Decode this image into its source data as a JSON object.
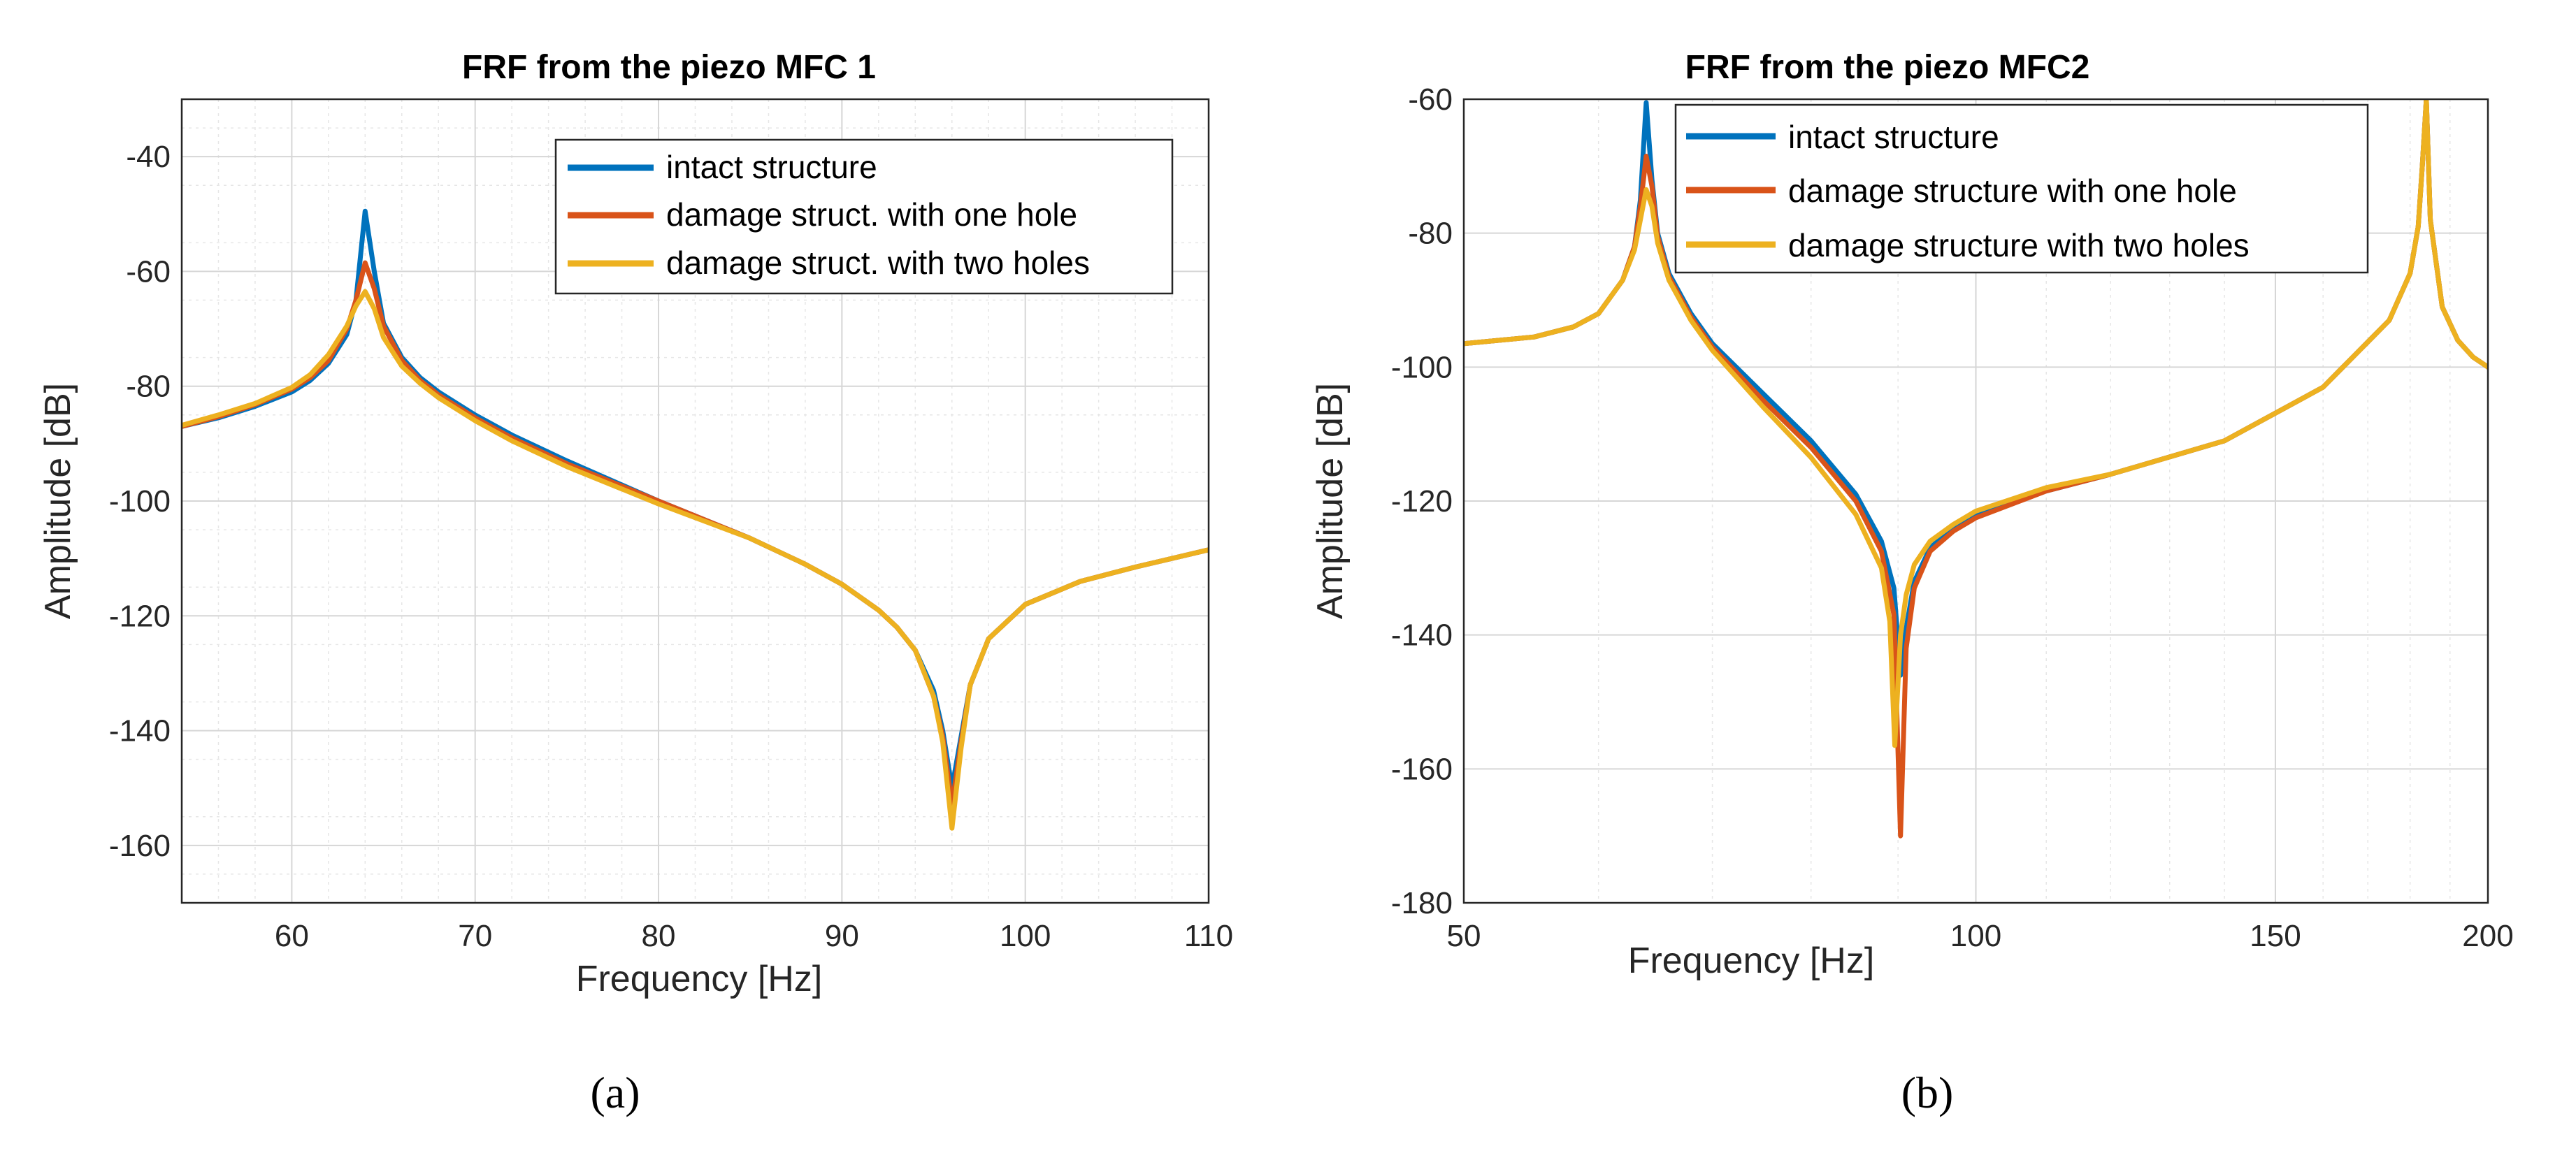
{
  "chart_data": [
    {
      "type": "line",
      "title": "FRF from the piezo MFC 1",
      "xlabel": "Frequency [Hz]",
      "ylabel": "Amplitude [dB]",
      "xlim": [
        54,
        110
      ],
      "ylim": [
        -170,
        -30
      ],
      "xticks": [
        60,
        70,
        80,
        90,
        100,
        110
      ],
      "yticks": [
        -40,
        -60,
        -80,
        -100,
        -120,
        -140,
        -160
      ],
      "xscale": "linear",
      "grid": true,
      "legend_position": "top-right",
      "caption": "(a)",
      "series": [
        {
          "name": "intact structure",
          "color": "#0072BD",
          "x": [
            54,
            56,
            58,
            60,
            61,
            62,
            63,
            63.5,
            64,
            64.5,
            65,
            66,
            67,
            68,
            70,
            72,
            75,
            80,
            85,
            88,
            90,
            92,
            93,
            94,
            95,
            95.5,
            96,
            96.5,
            97,
            98,
            100,
            103,
            106,
            110
          ],
          "y": [
            -87,
            -85.5,
            -83.5,
            -81,
            -79,
            -76,
            -71,
            -65,
            -49.5,
            -60,
            -69,
            -75,
            -78.5,
            -81,
            -85,
            -88.5,
            -93,
            -100,
            -106.5,
            -111,
            -114.5,
            -119,
            -122,
            -126,
            -133,
            -140,
            -150,
            -141,
            -132,
            -124,
            -118,
            -114,
            -111.5,
            -108.5
          ]
        },
        {
          "name": "damage struct. with one hole",
          "color": "#D95319",
          "x": [
            54,
            56,
            58,
            60,
            61,
            62,
            63,
            63.5,
            64,
            64.5,
            65,
            66,
            67,
            68,
            70,
            72,
            75,
            80,
            85,
            88,
            90,
            92,
            93,
            94,
            95,
            95.5,
            96,
            96.5,
            97,
            98,
            100,
            103,
            106,
            110
          ],
          "y": [
            -87,
            -85.3,
            -83.2,
            -80.5,
            -78.5,
            -75.5,
            -70,
            -65,
            -58.5,
            -63,
            -69.5,
            -75.5,
            -79,
            -81.5,
            -85.5,
            -89,
            -93.5,
            -100,
            -106.5,
            -111,
            -114.5,
            -119,
            -122,
            -126,
            -134,
            -141,
            -153,
            -142,
            -132,
            -124,
            -118,
            -114,
            -111.5,
            -108.5
          ]
        },
        {
          "name": "damage struct. with two holes",
          "color": "#EDB120",
          "x": [
            54,
            56,
            58,
            60,
            61,
            62,
            63,
            63.5,
            64,
            64.5,
            65,
            66,
            67,
            68,
            70,
            72,
            75,
            80,
            85,
            88,
            90,
            92,
            93,
            94,
            95,
            95.5,
            96,
            96.5,
            97,
            98,
            100,
            103,
            106,
            110
          ],
          "y": [
            -86.8,
            -85,
            -83,
            -80.2,
            -78,
            -74.5,
            -69.5,
            -66,
            -63.5,
            -66.5,
            -71.5,
            -76.5,
            -79.5,
            -82,
            -86,
            -89.5,
            -94,
            -100.5,
            -106.5,
            -111,
            -114.5,
            -119,
            -122,
            -126,
            -134,
            -142,
            -157,
            -143,
            -132,
            -124,
            -118,
            -114,
            -111.5,
            -108.5
          ]
        }
      ]
    },
    {
      "type": "line",
      "title": "FRF from the piezo MFC2",
      "xlabel": "Frequency [Hz]",
      "ylabel": "Amplitude [dB]",
      "xlim": [
        50,
        200
      ],
      "ylim": [
        -180,
        -60
      ],
      "xticks": [
        50,
        100,
        150,
        200
      ],
      "yticks": [
        -60,
        -80,
        -100,
        -120,
        -140,
        -160,
        -180
      ],
      "xscale": "log",
      "grid": true,
      "legend_position": "top",
      "caption": "(b)",
      "series": [
        {
          "name": "intact structure",
          "color": "#0072BD",
          "x": [
            50,
            55,
            58,
            60,
            62,
            63,
            63.5,
            64,
            64.5,
            65,
            66,
            68,
            70,
            75,
            80,
            85,
            88,
            89.5,
            90.3,
            91,
            92,
            94,
            97,
            100,
            110,
            120,
            140,
            160,
            175,
            180,
            182,
            183,
            184,
            185,
            188,
            192,
            196,
            200
          ],
          "y": [
            -96.5,
            -95.5,
            -94,
            -92,
            -87,
            -82,
            -75,
            -60.5,
            -72,
            -80,
            -86,
            -92,
            -96.5,
            -104,
            -111,
            -119,
            -126,
            -133,
            -146,
            -139,
            -132,
            -127,
            -124,
            -122,
            -118.5,
            -116,
            -111,
            -103,
            -93,
            -86,
            -79,
            -70,
            -60,
            -78,
            -91,
            -96,
            -98.5,
            -100
          ]
        },
        {
          "name": "damage structure with one hole",
          "color": "#D95319",
          "x": [
            50,
            55,
            58,
            60,
            62,
            63,
            63.5,
            64,
            64.5,
            65,
            66,
            68,
            70,
            75,
            80,
            85,
            88,
            89.5,
            90.3,
            91,
            92,
            94,
            97,
            100,
            110,
            120,
            140,
            160,
            175,
            180,
            182,
            183,
            184,
            185,
            188,
            192,
            196,
            200
          ],
          "y": [
            -96.5,
            -95.5,
            -94,
            -92,
            -87,
            -82,
            -76,
            -68.5,
            -73,
            -80.5,
            -86.5,
            -92.5,
            -97,
            -105,
            -112,
            -120,
            -127.5,
            -137,
            -170,
            -142,
            -133,
            -127.5,
            -124.5,
            -122.5,
            -118.5,
            -116,
            -111,
            -103,
            -93,
            -86,
            -79,
            -70,
            -60,
            -78,
            -91,
            -96,
            -98.5,
            -100
          ]
        },
        {
          "name": "damage structure with two holes",
          "color": "#EDB120",
          "x": [
            50,
            55,
            58,
            60,
            62,
            63,
            63.5,
            64,
            64.5,
            65,
            66,
            68,
            70,
            75,
            80,
            85,
            88,
            89,
            89.6,
            90.3,
            91,
            92,
            94,
            97,
            100,
            110,
            120,
            140,
            160,
            175,
            180,
            182,
            183,
            184,
            185,
            188,
            192,
            196,
            200
          ],
          "y": [
            -96.5,
            -95.5,
            -94,
            -92,
            -87,
            -82.5,
            -78,
            -73.5,
            -76,
            -81.5,
            -87,
            -93,
            -97.5,
            -106,
            -113.5,
            -122,
            -130,
            -138,
            -156.5,
            -140,
            -134,
            -129.5,
            -126,
            -123.5,
            -121.5,
            -118,
            -116,
            -111,
            -103,
            -93,
            -86,
            -79,
            -70,
            -60,
            -78,
            -91,
            -96,
            -98.5,
            -100
          ]
        }
      ]
    }
  ]
}
